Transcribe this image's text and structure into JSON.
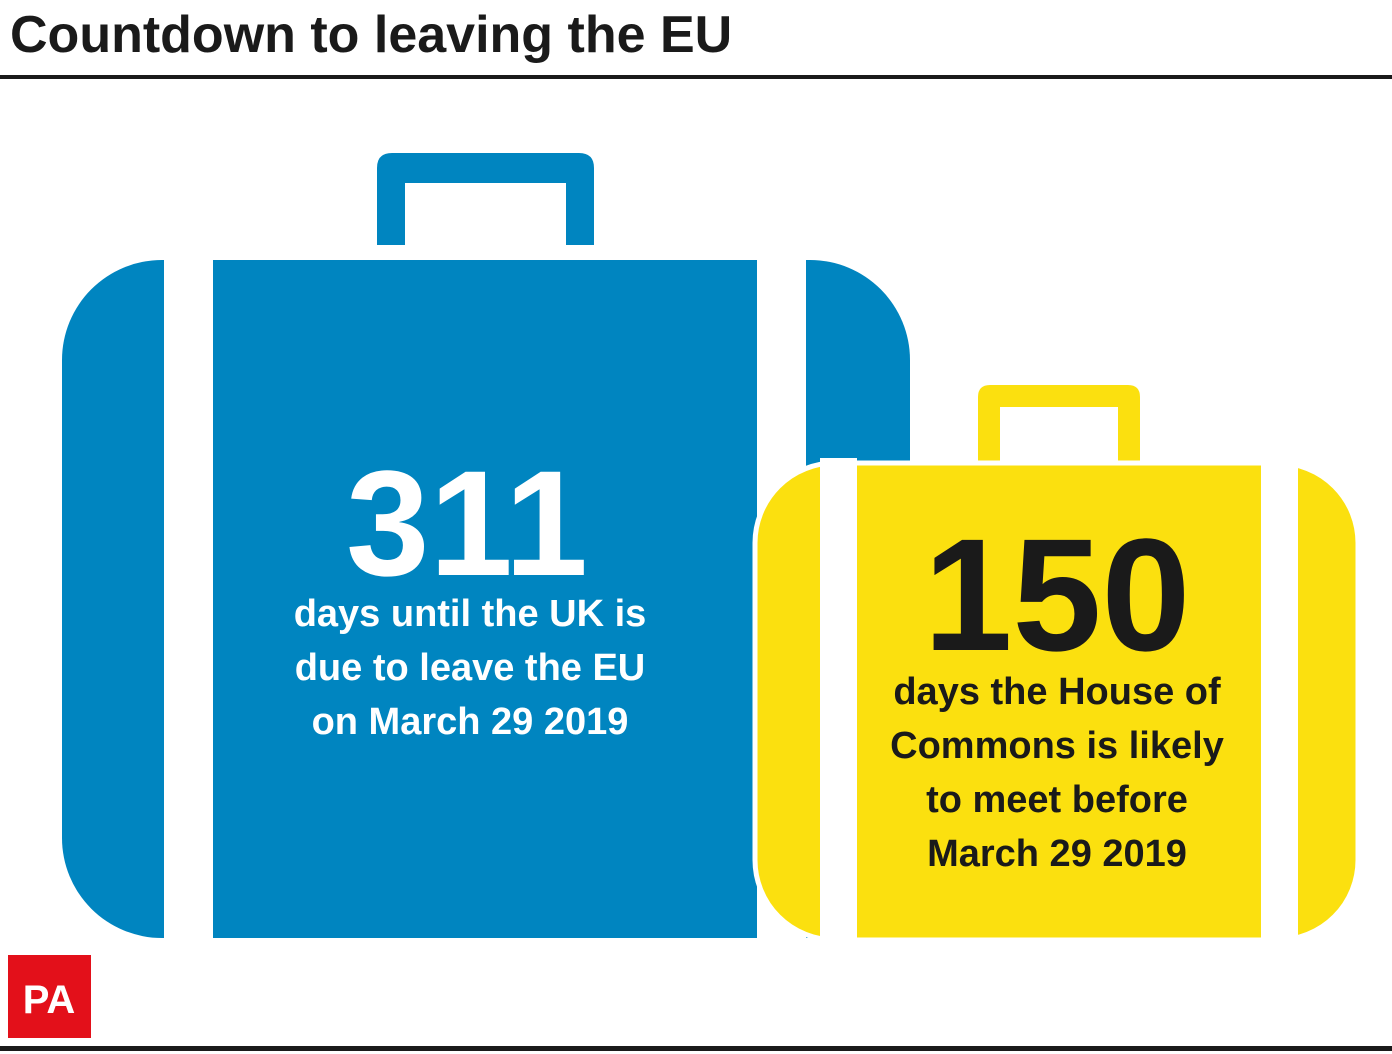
{
  "header": {
    "title": "Countdown to leaving the EU"
  },
  "cases": [
    {
      "number": 311,
      "lines": [
        "days until the UK is",
        "due to leave the EU",
        "on March 29 2019"
      ]
    },
    {
      "number": 150,
      "lines": [
        "days the House of",
        "Commons is likely",
        "to meet before",
        "March 29 2019"
      ]
    }
  ],
  "logo": "PA"
}
